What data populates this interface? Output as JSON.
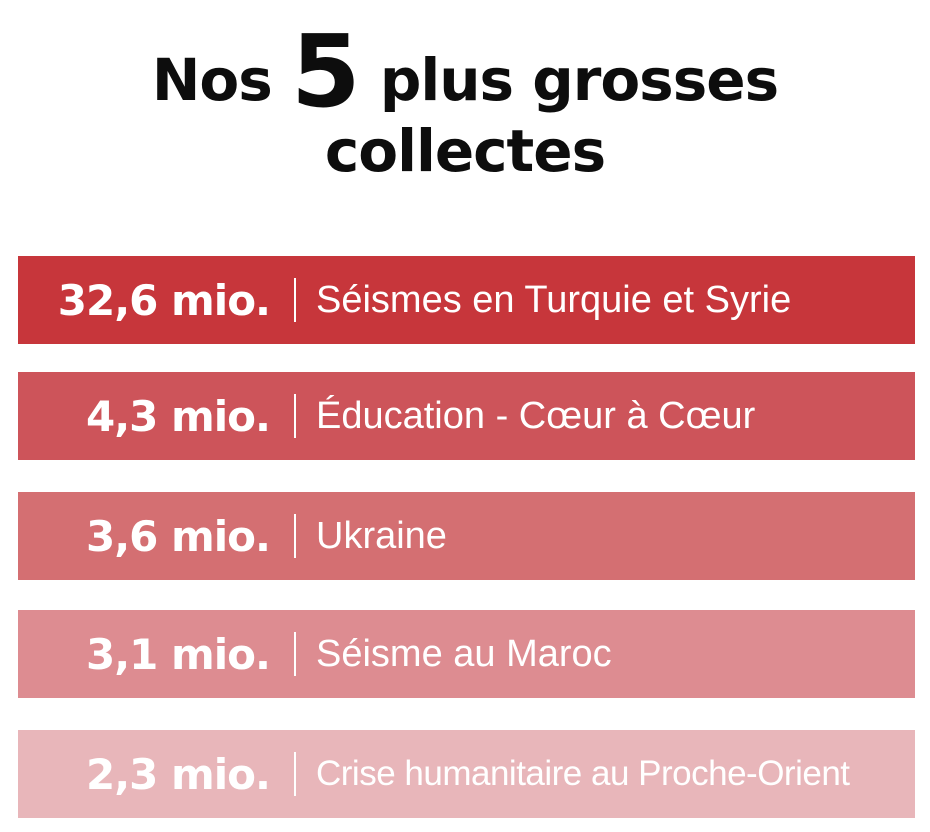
{
  "title": {
    "prefix": "Nos",
    "number": "5",
    "suffix": "plus grosses",
    "line2": "collectes"
  },
  "rows": [
    {
      "amount": "32,6 mio.",
      "separator": "|",
      "label": "Séismes en Turquie et Syrie",
      "color": "#c7363b"
    },
    {
      "amount": "4,3 mio.",
      "separator": "|",
      "label": "Éducation - Cœur à Cœur",
      "color": "#cd545a"
    },
    {
      "amount": "3,6 mio.",
      "separator": "|",
      "label": "Ukraine",
      "color": "#d46f72"
    },
    {
      "amount": "3,1 mio.",
      "separator": "|",
      "label": "Séisme au Maroc",
      "color": "#dd8c91"
    },
    {
      "amount": "2,3 mio.",
      "separator": "|",
      "label": "Crise humanitaire au Proche-Orient",
      "color": "#e8b6ba"
    }
  ]
}
